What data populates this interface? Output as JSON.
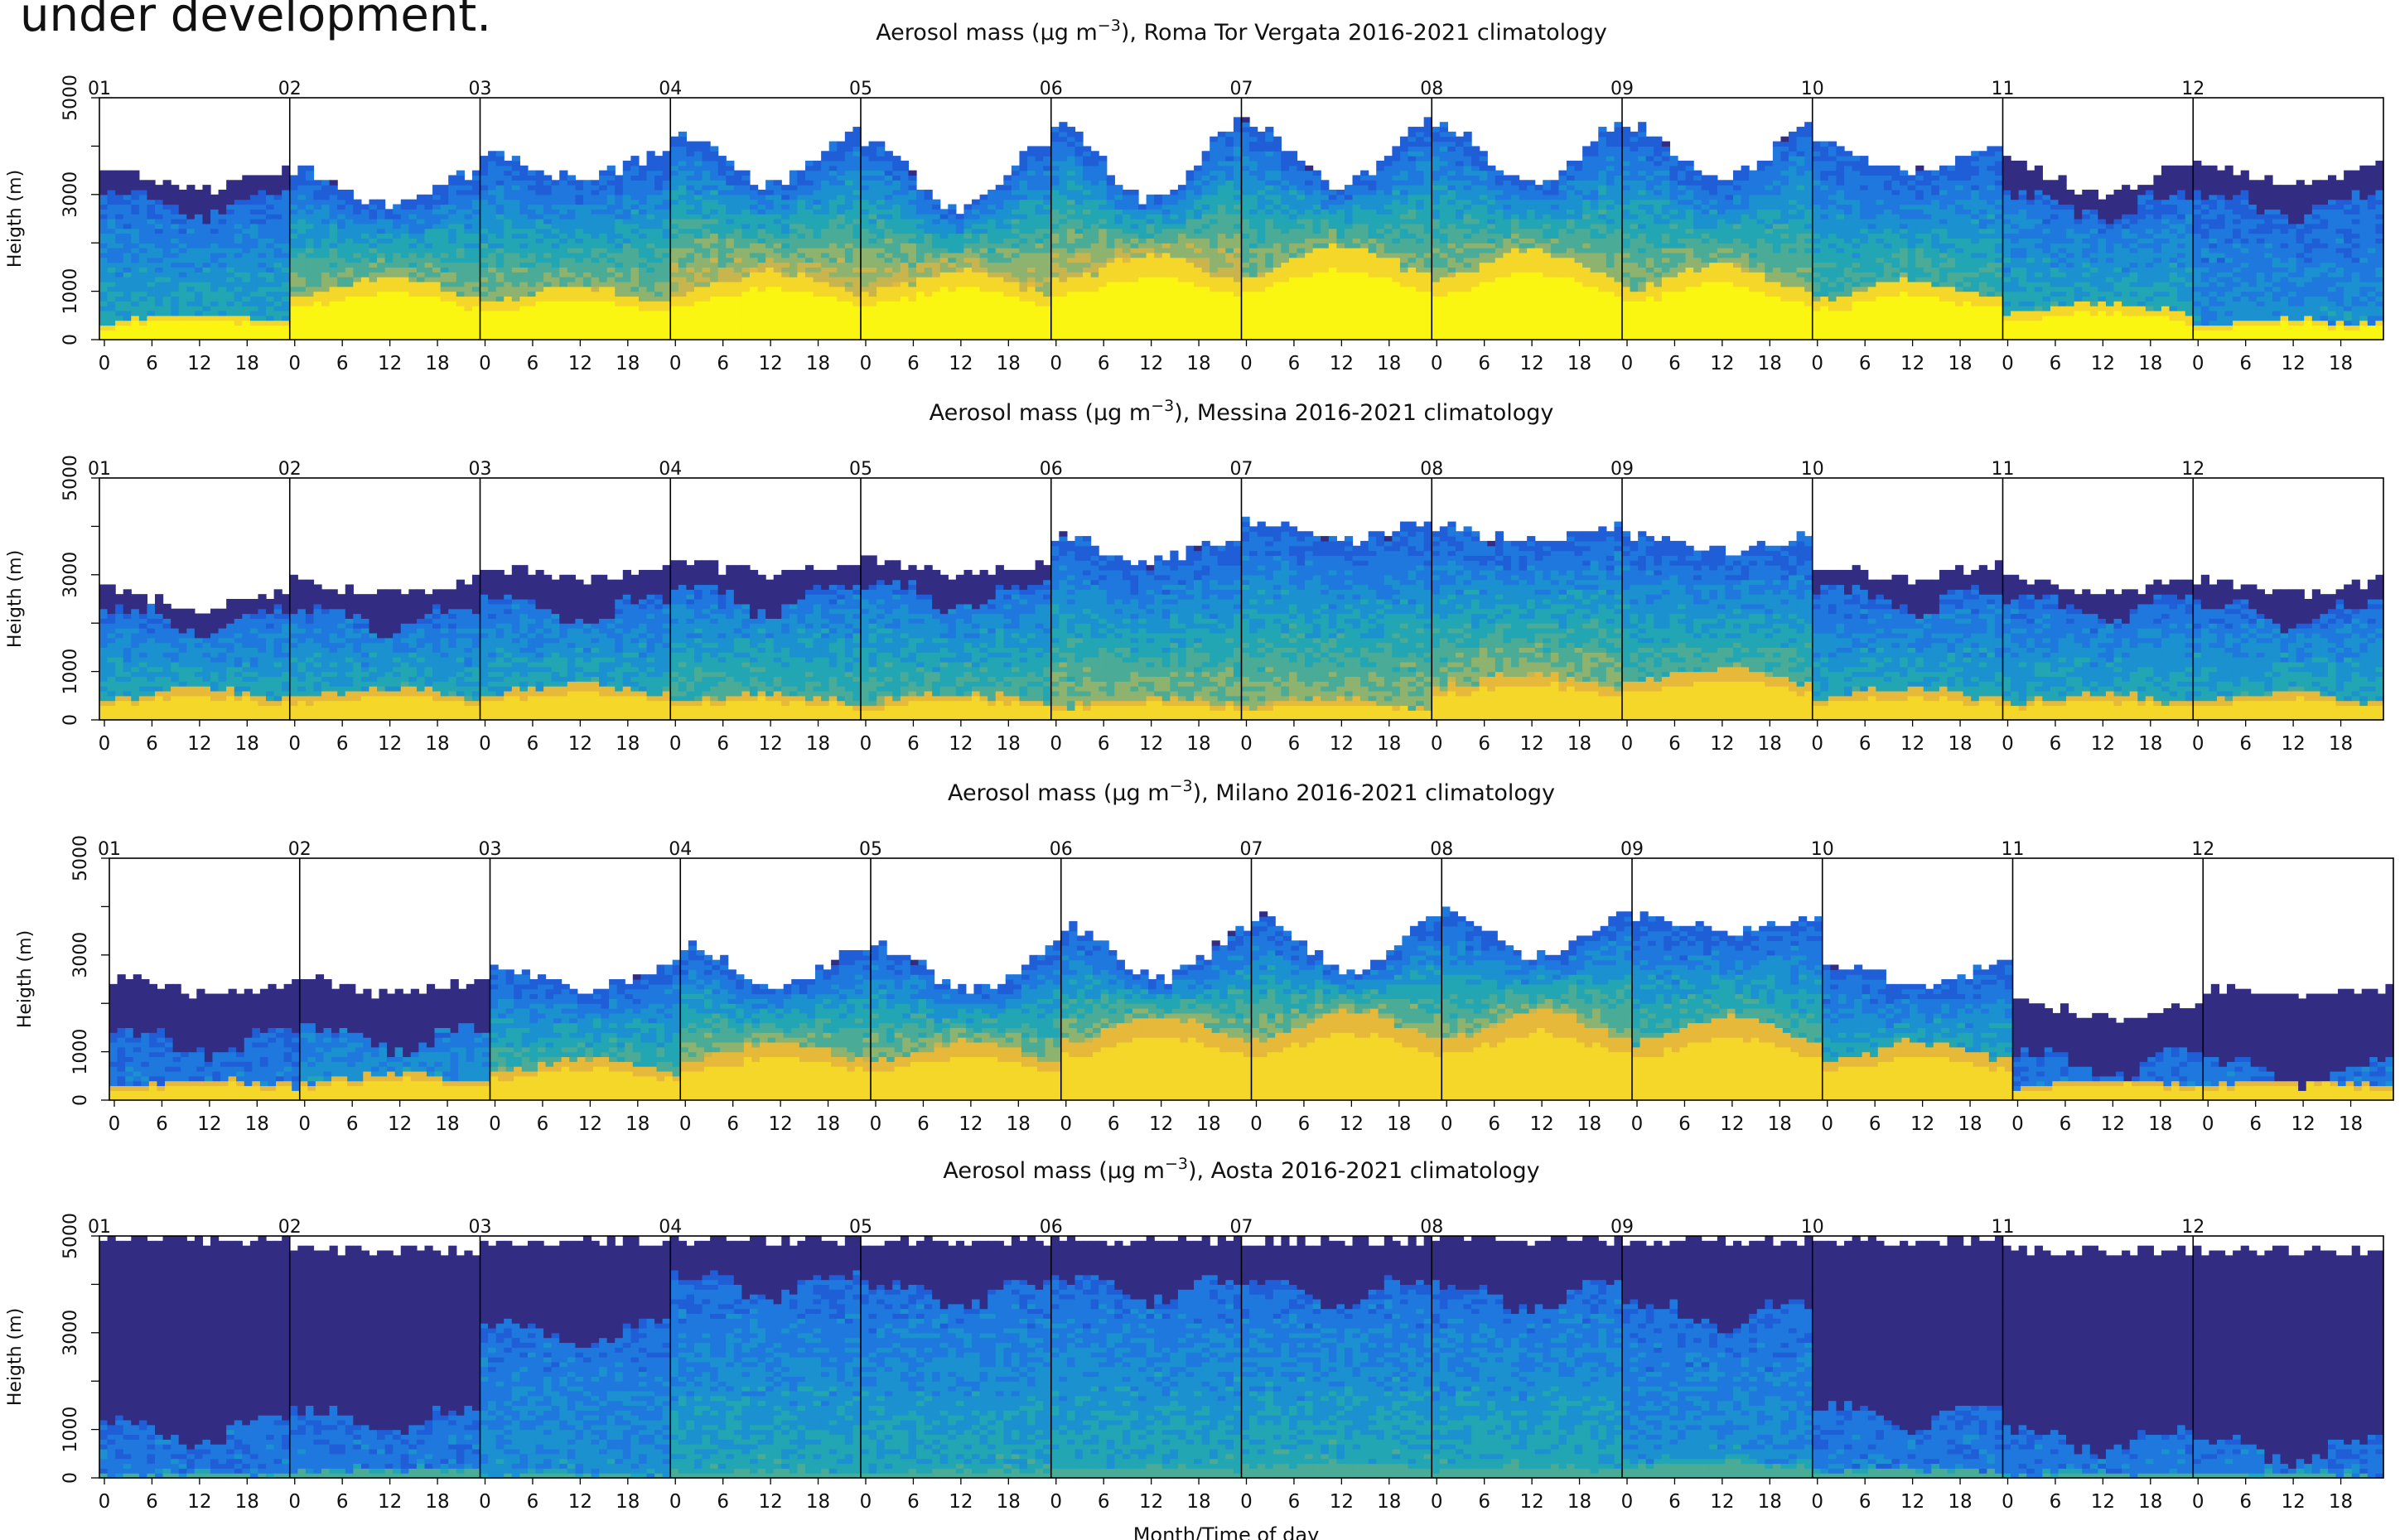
{
  "page": {
    "header_text": "under development."
  },
  "colors": {
    "scale": [
      "#322c83",
      "#1f5ed6",
      "#1f78de",
      "#1b91d0",
      "#22a6b4",
      "#4aab96",
      "#8eb36e",
      "#c9b54e",
      "#e7b93a",
      "#f5d72a",
      "#fbf512"
    ],
    "grid": "#000000"
  },
  "x_axis_label": "Month/Time of day",
  "chart_data": [
    {
      "type": "heatmap",
      "title_prefix": "Aerosol mass (μg m",
      "title_superscript": "−3",
      "title_suffix": "), Roma Tor Vergata 2016-2021 climatology",
      "ylabel": "Heigth (m)",
      "yticks": [
        "0",
        "1000",
        "3000",
        "5000"
      ],
      "ylim": [
        0,
        5000
      ],
      "months": [
        "01",
        "02",
        "03",
        "04",
        "05",
        "06",
        "07",
        "08",
        "09",
        "10",
        "11",
        "12"
      ],
      "hour_ticks": [
        "0",
        "6",
        "12",
        "18"
      ],
      "top_m": [
        3600,
        3500,
        3900,
        4300,
        4100,
        4500,
        4500,
        4500,
        4400,
        4000,
        3700,
        3600
      ],
      "dip_m": [
        500,
        700,
        600,
        1100,
        1400,
        1600,
        1300,
        1300,
        1100,
        500,
        700,
        400
      ],
      "yellow_m": [
        500,
        1200,
        1000,
        1300,
        1300,
        1600,
        1800,
        1700,
        1400,
        1100,
        700,
        400
      ],
      "mid_level": [
        4,
        6,
        6,
        7,
        7,
        7,
        6,
        6,
        6,
        5,
        4,
        3
      ],
      "base_level": 10,
      "purple_m": [
        3000,
        0,
        0,
        0,
        0,
        0,
        0,
        0,
        0,
        0,
        3000,
        3000
      ]
    },
    {
      "type": "heatmap",
      "title_prefix": "Aerosol mass (μg m",
      "title_superscript": "−3",
      "title_suffix": "), Messina 2016-2021 climatology",
      "ylabel": "Heigth (m)",
      "yticks": [
        "0",
        "1000",
        "3000",
        "5000"
      ],
      "ylim": [
        0,
        5000
      ],
      "months": [
        "01",
        "02",
        "03",
        "04",
        "05",
        "06",
        "07",
        "08",
        "09",
        "10",
        "11",
        "12"
      ],
      "hour_ticks": [
        "0",
        "6",
        "12",
        "18"
      ],
      "top_m": [
        2700,
        2900,
        3200,
        3300,
        3300,
        3800,
        4100,
        4000,
        3800,
        3200,
        2900,
        2900
      ],
      "dip_m": [
        400,
        300,
        300,
        300,
        300,
        500,
        400,
        300,
        300,
        300,
        300,
        300
      ],
      "yellow_m": [
        600,
        600,
        700,
        500,
        500,
        400,
        400,
        900,
        1000,
        600,
        500,
        500
      ],
      "mid_level": [
        4,
        4,
        4,
        5,
        5,
        6,
        6,
        6,
        5,
        4,
        4,
        4
      ],
      "base_level": 9,
      "purple_m": [
        2300,
        2300,
        2500,
        2700,
        2800,
        0,
        0,
        0,
        0,
        2700,
        2500,
        2400
      ]
    },
    {
      "type": "heatmap",
      "title_prefix": "Aerosol mass (μg m",
      "title_superscript": "−3",
      "title_suffix": "), Milano 2016-2021 climatology",
      "ylabel": "Heigth (m)",
      "yticks": [
        "0",
        "1000",
        "3000",
        "5000"
      ],
      "ylim": [
        0,
        5000
      ],
      "months": [
        "01",
        "02",
        "03",
        "04",
        "05",
        "06",
        "07",
        "08",
        "09",
        "10",
        "11",
        "12"
      ],
      "hour_ticks": [
        "0",
        "6",
        "12",
        "18"
      ],
      "top_m": [
        2500,
        2500,
        2800,
        3200,
        3200,
        3600,
        3800,
        3900,
        3800,
        2800,
        2000,
        2300
      ],
      "dip_m": [
        300,
        300,
        500,
        900,
        900,
        1100,
        1100,
        900,
        300,
        400,
        300,
        200
      ],
      "yellow_m": [
        400,
        500,
        800,
        1100,
        1100,
        1600,
        1700,
        1700,
        1600,
        1100,
        400,
        400
      ],
      "mid_level": [
        2,
        3,
        5,
        6,
        6,
        6,
        6,
        6,
        5,
        4,
        2,
        2
      ],
      "base_level": 9,
      "purple_m": [
        1400,
        1500,
        0,
        0,
        0,
        0,
        0,
        0,
        0,
        0,
        1000,
        800
      ]
    },
    {
      "type": "heatmap",
      "title_prefix": "Aerosol mass (μg m",
      "title_superscript": "−3",
      "title_suffix": "), Aosta 2016-2021 climatology",
      "ylabel": "Heigth (m)",
      "yticks": [
        "0",
        "1000",
        "3000",
        "5000"
      ],
      "ylim": [
        0,
        5000
      ],
      "months": [
        "01",
        "02",
        "03",
        "04",
        "05",
        "06",
        "07",
        "08",
        "09",
        "10",
        "11",
        "12"
      ],
      "hour_ticks": [
        "0",
        "6",
        "12",
        "18"
      ],
      "top_m": [
        4900,
        4700,
        4900,
        4900,
        4900,
        4900,
        4900,
        4900,
        4900,
        4900,
        4700,
        4700
      ],
      "dip_m": [
        0,
        0,
        0,
        0,
        0,
        0,
        0,
        0,
        0,
        0,
        0,
        0
      ],
      "yellow_m": [
        100,
        200,
        100,
        200,
        200,
        300,
        400,
        300,
        400,
        200,
        100,
        100
      ],
      "mid_level": [
        2,
        2,
        3,
        4,
        4,
        4,
        4,
        4,
        3,
        2,
        2,
        2
      ],
      "base_level": 5,
      "purple_m": [
        1200,
        1400,
        3200,
        4200,
        4000,
        4100,
        4100,
        4000,
        3600,
        1500,
        1000,
        800
      ]
    }
  ]
}
